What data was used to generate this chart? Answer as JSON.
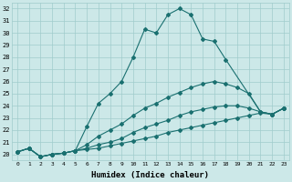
{
  "xlabel": "Humidex (Indice chaleur)",
  "ylabel": "",
  "xlim": [
    -0.5,
    23.5
  ],
  "ylim": [
    19.5,
    32.5
  ],
  "yticks": [
    20,
    21,
    22,
    23,
    24,
    25,
    26,
    27,
    28,
    29,
    30,
    31,
    32
  ],
  "xticks": [
    0,
    1,
    2,
    3,
    4,
    5,
    6,
    7,
    8,
    9,
    10,
    11,
    12,
    13,
    14,
    15,
    16,
    17,
    18,
    19,
    20,
    21,
    22,
    23
  ],
  "background_color": "#cce8e8",
  "line_color": "#1a7070",
  "grid_color": "#a0cccc",
  "series": [
    {
      "x": [
        0,
        1,
        2,
        3,
        4,
        5,
        6,
        7,
        8,
        9,
        10,
        11,
        12,
        13,
        14,
        15,
        16,
        17,
        18,
        21,
        22,
        23
      ],
      "y": [
        20.2,
        20.5,
        19.8,
        20.0,
        20.1,
        20.3,
        22.3,
        24.2,
        25.0,
        26.0,
        28.0,
        30.3,
        30.0,
        31.5,
        32.0,
        31.5,
        29.5,
        29.3,
        27.8,
        23.5,
        23.3,
        23.8
      ]
    },
    {
      "x": [
        0,
        1,
        2,
        3,
        4,
        5,
        6,
        7,
        8,
        9,
        10,
        11,
        12,
        13,
        14,
        15,
        16,
        17,
        18,
        19,
        20,
        21,
        22,
        23
      ],
      "y": [
        20.2,
        20.5,
        19.8,
        20.0,
        20.1,
        20.3,
        20.8,
        21.5,
        22.0,
        22.5,
        23.2,
        23.8,
        24.2,
        24.7,
        25.1,
        25.5,
        25.8,
        26.0,
        25.8,
        25.5,
        25.0,
        23.5,
        23.3,
        23.8
      ]
    },
    {
      "x": [
        0,
        1,
        2,
        3,
        4,
        5,
        6,
        7,
        8,
        9,
        10,
        11,
        12,
        13,
        14,
        15,
        16,
        17,
        18,
        19,
        20,
        21,
        22,
        23
      ],
      "y": [
        20.2,
        20.5,
        19.8,
        20.0,
        20.1,
        20.3,
        20.5,
        20.8,
        21.0,
        21.3,
        21.8,
        22.2,
        22.5,
        22.8,
        23.2,
        23.5,
        23.7,
        23.9,
        24.0,
        24.0,
        23.8,
        23.5,
        23.3,
        23.8
      ]
    },
    {
      "x": [
        0,
        1,
        2,
        3,
        4,
        5,
        6,
        7,
        8,
        9,
        10,
        11,
        12,
        13,
        14,
        15,
        16,
        17,
        18,
        19,
        20,
        21,
        22,
        23
      ],
      "y": [
        20.2,
        20.5,
        19.8,
        20.0,
        20.1,
        20.3,
        20.4,
        20.5,
        20.7,
        20.9,
        21.1,
        21.3,
        21.5,
        21.8,
        22.0,
        22.2,
        22.4,
        22.6,
        22.8,
        23.0,
        23.2,
        23.4,
        23.3,
        23.8
      ]
    }
  ]
}
